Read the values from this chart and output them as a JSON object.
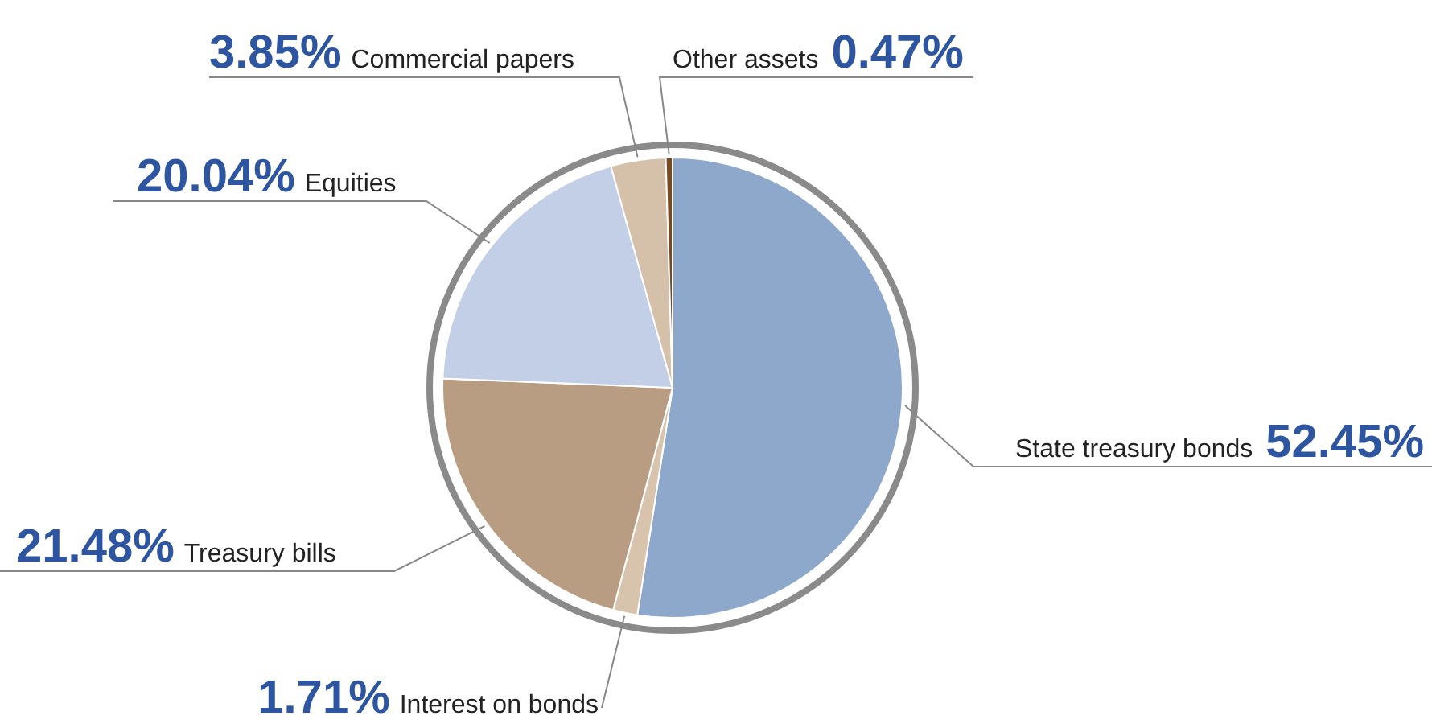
{
  "chart_data": {
    "type": "pie",
    "categories": [
      "State treasury bonds",
      "Interest on bonds",
      "Treasury bills",
      "Equities",
      "Commercial papers",
      "Other assets"
    ],
    "values": [
      52.45,
      1.71,
      21.48,
      20.04,
      3.85,
      0.47
    ],
    "value_labels": [
      "52.45%",
      "1.71%",
      "21.48%",
      "20.04%",
      "3.85%",
      "0.47%"
    ],
    "colors": [
      "#8ea8cc",
      "#d8c3ad",
      "#b89d82",
      "#c3cfe6",
      "#d5c1aa",
      "#7a4a1e"
    ],
    "legend": false
  }
}
